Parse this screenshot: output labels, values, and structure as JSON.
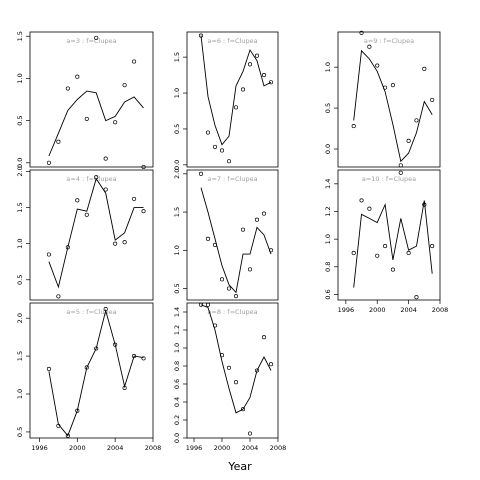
{
  "chart_data": {
    "type": "scatter",
    "xlabel": "Year",
    "panels": [
      {
        "title": "a=3 : f=Clupea",
        "xlim": [
          1995,
          2008
        ],
        "ylim": [
          -0.05,
          1.55
        ],
        "yticks": [
          "0.0",
          "0.5",
          "1.0",
          "1.5"
        ],
        "xticks": [],
        "series": [
          {
            "type": "scatter",
            "x": [
              1997,
              1998,
              1999,
              2000,
              2001,
              2002,
              2003,
              2004,
              2005,
              2006,
              2007
            ],
            "y": [
              0.0,
              0.25,
              0.88,
              1.02,
              0.52,
              1.48,
              0.05,
              0.48,
              0.92,
              1.2,
              -0.05
            ]
          },
          {
            "type": "line",
            "x": [
              1997,
              1998,
              1999,
              2000,
              2001,
              2002,
              2003,
              2004,
              2005,
              2006,
              2007
            ],
            "y": [
              0.08,
              0.35,
              0.62,
              0.75,
              0.85,
              0.83,
              0.5,
              0.55,
              0.72,
              0.78,
              0.65
            ]
          }
        ]
      },
      {
        "title": "a=6 : f=Clupea",
        "xlim": [
          1995,
          2008
        ],
        "ylim": [
          -0.03,
          1.85
        ],
        "yticks": [
          "0.0",
          "0.5",
          "1.0",
          "1.5"
        ],
        "xticks": [],
        "series": [
          {
            "type": "scatter",
            "x": [
              1997,
              1998,
              1999,
              2000,
              2001,
              2002,
              2003,
              2004,
              2005,
              2006,
              2007
            ],
            "y": [
              1.8,
              0.45,
              0.25,
              0.2,
              0.05,
              0.8,
              1.05,
              1.4,
              1.52,
              1.25,
              1.15
            ]
          },
          {
            "type": "line",
            "x": [
              1997,
              1998,
              1999,
              2000,
              2001,
              2002,
              2003,
              2004,
              2005,
              2006,
              2007
            ],
            "y": [
              1.8,
              0.95,
              0.55,
              0.28,
              0.4,
              1.1,
              1.3,
              1.6,
              1.45,
              1.1,
              1.15
            ]
          }
        ]
      },
      {
        "title": "a=9 : f=Clupea",
        "xlim": [
          1995,
          2008
        ],
        "ylim": [
          -0.22,
          1.43
        ],
        "yticks": [
          "0.0",
          "0.5",
          "1.0"
        ],
        "xticks": [],
        "series": [
          {
            "type": "scatter",
            "x": [
              1997,
              1998,
              1999,
              2000,
              2001,
              2002,
              2003,
              2004,
              2005,
              2006,
              2007
            ],
            "y": [
              0.28,
              1.42,
              1.25,
              1.02,
              0.75,
              0.78,
              -0.2,
              0.1,
              0.35,
              0.98,
              0.6
            ]
          },
          {
            "type": "line",
            "x": [
              1997,
              1998,
              1999,
              2000,
              2001,
              2002,
              2003,
              2004,
              2005,
              2006,
              2007
            ],
            "y": [
              0.35,
              1.2,
              1.1,
              0.95,
              0.7,
              0.3,
              -0.15,
              -0.05,
              0.2,
              0.58,
              0.42
            ]
          }
        ]
      },
      {
        "title": "a=4 : f=Clupea",
        "xlim": [
          1995,
          2008
        ],
        "ylim": [
          0.22,
          2.02
        ],
        "yticks": [
          "0.5",
          "1.0",
          "1.5",
          "2.0"
        ],
        "xticks": [],
        "series": [
          {
            "type": "scatter",
            "x": [
              1997,
              1998,
              1999,
              2000,
              2001,
              2002,
              2003,
              2004,
              2005,
              2006,
              2007
            ],
            "y": [
              0.85,
              0.27,
              0.95,
              1.6,
              1.4,
              1.92,
              1.75,
              1.0,
              1.02,
              1.62,
              1.45
            ]
          },
          {
            "type": "line",
            "x": [
              1997,
              1998,
              1999,
              2000,
              2001,
              2002,
              2003,
              2004,
              2005,
              2006,
              2007
            ],
            "y": [
              0.75,
              0.4,
              0.95,
              1.48,
              1.45,
              1.9,
              1.7,
              1.05,
              1.15,
              1.5,
              1.5
            ]
          }
        ]
      },
      {
        "title": "a=7 : f=Clupea",
        "xlim": [
          1995,
          2008
        ],
        "ylim": [
          0.35,
          2.05
        ],
        "yticks": [
          "0.5",
          "1.0",
          "1.5",
          "2.0"
        ],
        "xticks": [],
        "series": [
          {
            "type": "scatter",
            "x": [
              1997,
              1998,
              1999,
              2000,
              2001,
              2002,
              2003,
              2004,
              2005,
              2006,
              2007
            ],
            "y": [
              2.0,
              1.15,
              1.07,
              0.62,
              0.5,
              0.4,
              1.27,
              0.75,
              1.4,
              1.48,
              1.0
            ]
          },
          {
            "type": "line",
            "x": [
              1997,
              1998,
              1999,
              2000,
              2001,
              2002,
              2003,
              2004,
              2005,
              2006,
              2007
            ],
            "y": [
              1.82,
              1.5,
              1.15,
              0.8,
              0.55,
              0.45,
              0.95,
              0.95,
              1.3,
              1.2,
              0.95
            ]
          }
        ]
      },
      {
        "title": "a=10 : f=Clupea",
        "xlim": [
          1995,
          2008
        ],
        "ylim": [
          0.56,
          1.5
        ],
        "yticks": [
          "0.6",
          "0.8",
          "1.0",
          "1.2",
          "1.4"
        ],
        "xticks": [
          "1996",
          "2000",
          "2004",
          "2008"
        ],
        "series": [
          {
            "type": "scatter",
            "x": [
              1997,
              1998,
              1999,
              2000,
              2001,
              2002,
              2003,
              2004,
              2005,
              2006,
              2007
            ],
            "y": [
              0.9,
              1.28,
              1.22,
              0.88,
              0.95,
              0.78,
              1.48,
              0.9,
              0.58,
              1.25,
              0.95
            ]
          },
          {
            "type": "line",
            "x": [
              1997,
              1998,
              1999,
              2000,
              2001,
              2002,
              2003,
              2004,
              2005,
              2006,
              2007
            ],
            "y": [
              0.65,
              1.18,
              1.15,
              1.12,
              1.25,
              0.85,
              1.15,
              0.92,
              0.95,
              1.28,
              0.75
            ]
          }
        ]
      },
      {
        "title": "a=5 : f=Clupea",
        "xlim": [
          1995,
          2008
        ],
        "ylim": [
          0.42,
          2.2
        ],
        "yticks": [
          "0.5",
          "1.0",
          "1.5",
          "2.0"
        ],
        "xticks": [
          "1996",
          "2000",
          "2004",
          "2008"
        ],
        "series": [
          {
            "type": "scatter",
            "x": [
              1997,
              1998,
              1999,
              2000,
              2001,
              2002,
              2003,
              2004,
              2005,
              2006,
              2007
            ],
            "y": [
              1.33,
              0.58,
              0.45,
              0.78,
              1.35,
              1.6,
              2.12,
              1.65,
              1.08,
              1.5,
              1.47
            ]
          },
          {
            "type": "line",
            "x": [
              1997,
              1998,
              1999,
              2000,
              2001,
              2002,
              2003,
              2004,
              2005,
              2006,
              2007
            ],
            "y": [
              1.3,
              0.6,
              0.45,
              0.78,
              1.35,
              1.6,
              2.1,
              1.65,
              1.1,
              1.5,
              1.48
            ]
          }
        ]
      },
      {
        "title": "a=8 : f=Clupea",
        "xlim": [
          1995,
          2008
        ],
        "ylim": [
          0.0,
          1.5
        ],
        "yticks": [
          "0.0",
          "0.2",
          "0.4",
          "0.6",
          "0.8",
          "1.0",
          "1.2",
          "1.4"
        ],
        "xticks": [
          "1996",
          "2000",
          "2004",
          "2008"
        ],
        "series": [
          {
            "type": "scatter",
            "x": [
              1997,
              1998,
              1999,
              2000,
              2001,
              2002,
              2003,
              2004,
              2005,
              2006,
              2007
            ],
            "y": [
              1.48,
              1.48,
              1.25,
              0.92,
              0.78,
              0.62,
              0.32,
              0.05,
              0.75,
              1.12,
              0.82
            ]
          },
          {
            "type": "line",
            "x": [
              1997,
              1998,
              1999,
              2000,
              2001,
              2002,
              2003,
              2004,
              2005,
              2006,
              2007
            ],
            "y": [
              1.48,
              1.45,
              1.2,
              0.85,
              0.55,
              0.28,
              0.32,
              0.45,
              0.75,
              0.9,
              0.75
            ]
          }
        ]
      }
    ]
  }
}
